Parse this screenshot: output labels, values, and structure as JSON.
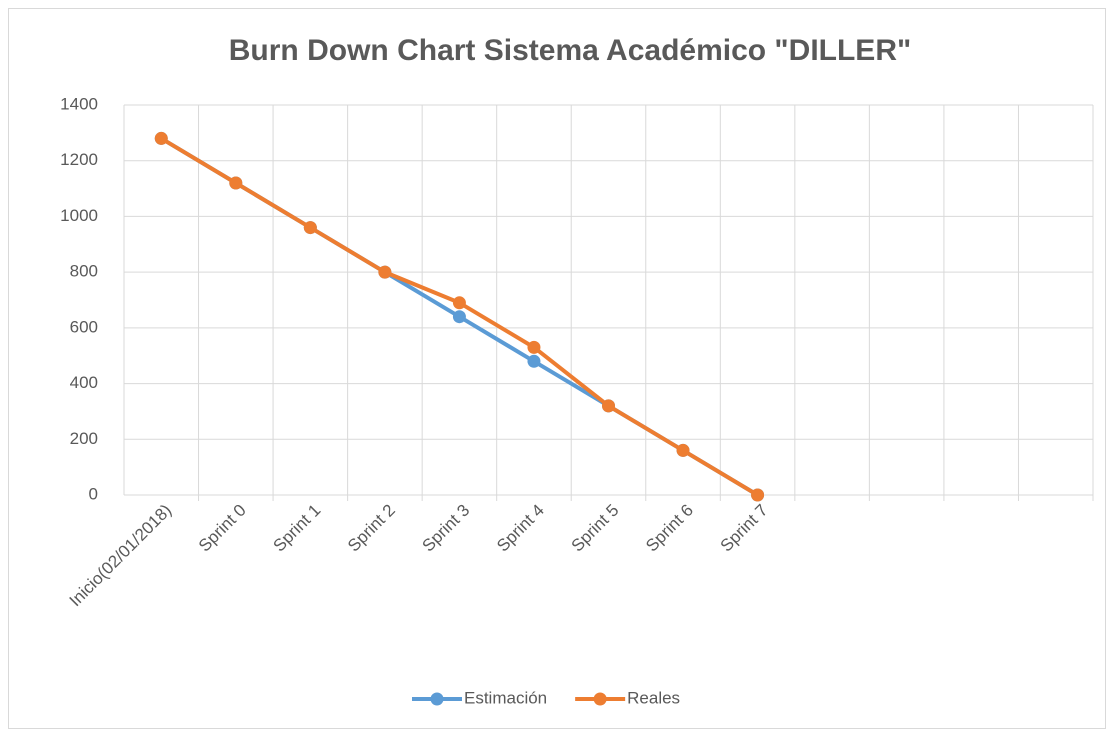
{
  "chart_data": {
    "type": "line",
    "title": "Burn Down Chart  Sistema Académico \"DILLER\"",
    "categories": [
      "Inicio(02/01/2018)",
      "Sprint 0",
      "Sprint 1",
      "Sprint 2",
      "Sprint 3",
      "Sprint 4",
      "Sprint 5",
      "Sprint 6",
      "Sprint 7",
      null,
      null,
      null,
      null
    ],
    "series": [
      {
        "name": "Estimación",
        "color": "#5b9bd5",
        "values": [
          1280,
          1120,
          960,
          800,
          640,
          480,
          320,
          160,
          0,
          null,
          null,
          null,
          null
        ]
      },
      {
        "name": "Reales",
        "color": "#ed7d31",
        "values": [
          1280,
          1120,
          960,
          800,
          690,
          530,
          320,
          160,
          0,
          null,
          null,
          null,
          null
        ]
      }
    ],
    "ylim": [
      0,
      1400
    ],
    "yticks": [
      0,
      200,
      400,
      600,
      800,
      1000,
      1200,
      1400
    ],
    "grid": true,
    "legend": "bottom"
  }
}
